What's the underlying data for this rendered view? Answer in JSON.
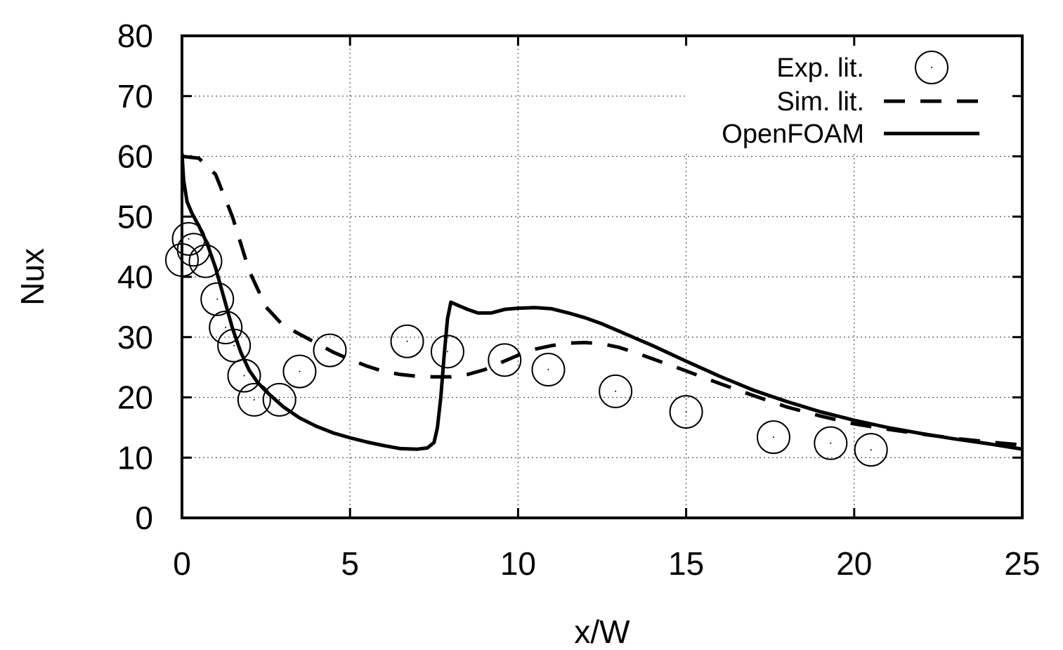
{
  "chart_data": {
    "type": "line",
    "xlabel": "x/W",
    "ylabel": "Nux",
    "xlim": [
      0,
      25
    ],
    "ylim": [
      0,
      80
    ],
    "xticks": [
      0,
      5,
      10,
      15,
      20,
      25
    ],
    "yticks": [
      0,
      10,
      20,
      30,
      40,
      50,
      60,
      70,
      80
    ],
    "grid": true,
    "legend_position": "top-right",
    "series": [
      {
        "name": "Exp. lit.",
        "style": "open-circle-markers",
        "x": [
          0.0,
          0.2,
          0.35,
          0.7,
          1.05,
          1.3,
          1.55,
          1.85,
          2.15,
          2.9,
          3.5,
          4.4,
          6.7,
          7.9,
          9.6,
          10.9,
          12.9,
          15.0,
          17.6,
          19.3,
          20.5
        ],
        "y": [
          42.8,
          46.3,
          44.5,
          42.6,
          36.3,
          31.6,
          28.6,
          23.6,
          19.6,
          19.6,
          24.3,
          27.8,
          29.3,
          27.6,
          26.2,
          24.6,
          21.0,
          17.6,
          13.4,
          12.4,
          11.3
        ]
      },
      {
        "name": "Sim. lit.",
        "style": "dashed",
        "x": [
          0.0,
          0.5,
          1.0,
          1.5,
          2.0,
          2.5,
          3.0,
          3.5,
          4.0,
          4.5,
          5.0,
          5.5,
          6.0,
          6.5,
          7.0,
          7.5,
          8.0,
          8.5,
          9.0,
          9.5,
          10.0,
          10.5,
          11.0,
          11.5,
          12.0,
          12.5,
          13.0,
          13.5,
          14.0,
          14.5,
          15.0,
          16.0,
          17.0,
          18.0,
          19.0,
          20.0,
          21.0,
          22.0,
          23.0,
          24.0,
          25.0
        ],
        "y": [
          60.0,
          59.7,
          57.0,
          50.0,
          41.0,
          35.0,
          32.0,
          30.5,
          29.0,
          27.5,
          26.3,
          25.2,
          24.3,
          23.8,
          23.5,
          23.4,
          23.4,
          23.8,
          24.6,
          25.8,
          27.0,
          28.0,
          28.6,
          29.0,
          29.1,
          28.9,
          28.3,
          27.4,
          26.4,
          25.4,
          24.4,
          22.3,
          20.3,
          18.4,
          16.9,
          15.6,
          14.7,
          13.9,
          13.2,
          12.6,
          12.1
        ]
      },
      {
        "name": "OpenFOAM",
        "style": "solid",
        "x": [
          0.0,
          0.05,
          0.15,
          0.3,
          0.5,
          0.75,
          1.0,
          1.25,
          1.5,
          1.75,
          2.0,
          2.25,
          2.5,
          3.0,
          3.5,
          4.0,
          4.5,
          5.0,
          5.5,
          6.0,
          6.5,
          7.0,
          7.3,
          7.5,
          7.6,
          7.7,
          7.8,
          7.9,
          8.0,
          8.2,
          8.5,
          8.8,
          9.2,
          9.6,
          10.0,
          10.5,
          11.0,
          11.5,
          12.0,
          12.5,
          13.0,
          13.5,
          14.0,
          15.0,
          16.0,
          17.0,
          18.0,
          19.0,
          20.0,
          21.0,
          22.0,
          23.0,
          24.0,
          25.0
        ],
        "y": [
          60.5,
          56.0,
          52.5,
          50.5,
          48.5,
          45.5,
          41.5,
          36.5,
          31.5,
          27.5,
          24.5,
          22.5,
          21.0,
          18.5,
          16.6,
          15.2,
          14.1,
          13.3,
          12.6,
          12.0,
          11.5,
          11.4,
          11.6,
          12.5,
          15.0,
          20.0,
          27.0,
          33.0,
          35.8,
          35.3,
          34.6,
          34.0,
          34.0,
          34.6,
          34.8,
          34.9,
          34.7,
          34.0,
          33.2,
          32.2,
          31.0,
          29.8,
          28.6,
          26.0,
          23.5,
          21.2,
          19.3,
          17.6,
          16.2,
          15.0,
          14.0,
          13.1,
          12.3,
          11.4
        ]
      }
    ]
  }
}
